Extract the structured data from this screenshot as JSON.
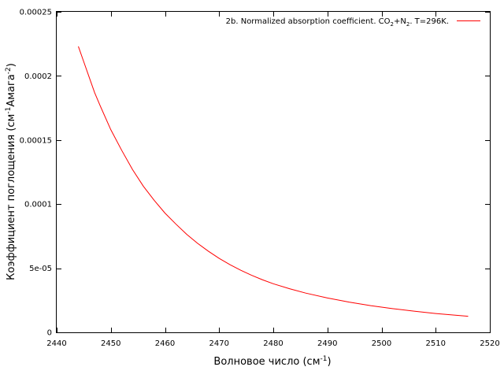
{
  "chart_data": {
    "type": "line",
    "title": "",
    "xlabel": {
      "text": "Волновое число (см",
      "sup": "-1",
      "tail": ")"
    },
    "ylabel": {
      "text": "Коэффициент поглощения (см",
      "sup1": "-1",
      "mid": "Амага",
      "sup2": "-2",
      "tail": ")"
    },
    "xlim": [
      2440,
      2520
    ],
    "ylim": [
      0,
      0.00025
    ],
    "x_ticks": [
      2440,
      2450,
      2460,
      2470,
      2480,
      2490,
      2500,
      2510,
      2520
    ],
    "y_ticks": [
      {
        "value": 0,
        "label": "0"
      },
      {
        "value": 5e-05,
        "label": "5e-05"
      },
      {
        "value": 0.0001,
        "label": "0.0001"
      },
      {
        "value": 0.00015,
        "label": "0.00015"
      },
      {
        "value": 0.0002,
        "label": "0.0002"
      },
      {
        "value": 0.00025,
        "label": "0.00025"
      }
    ],
    "grid": false,
    "legend_position": "top-right",
    "legend": {
      "prefix": "2b. Normalized absorption coefficient. CO",
      "sub1": "2",
      "mid": "+N",
      "sub2": "2",
      "tail": ". T=296K."
    },
    "line_color": "#ff0000",
    "series": [
      {
        "x": [
          2444,
          2445,
          2446,
          2447,
          2448,
          2450,
          2452,
          2454,
          2456,
          2458,
          2460,
          2462,
          2464,
          2466,
          2468,
          2470,
          2472,
          2474,
          2476,
          2478,
          2480,
          2483,
          2486,
          2490,
          2494,
          2498,
          2502,
          2506,
          2510,
          2513,
          2516
        ],
        "y": [
          0.000223,
          0.000211,
          0.000199,
          0.000187,
          0.000177,
          0.000158,
          0.000142,
          0.000127,
          0.000114,
          0.000103,
          9.3e-05,
          8.45e-05,
          7.65e-05,
          6.95e-05,
          6.33e-05,
          5.77e-05,
          5.28e-05,
          4.84e-05,
          4.45e-05,
          4.1e-05,
          3.79e-05,
          3.4e-05,
          3.06e-05,
          2.68e-05,
          2.36e-05,
          2.08e-05,
          1.85e-05,
          1.65e-05,
          1.47e-05,
          1.36e-05,
          1.25e-05
        ]
      }
    ]
  }
}
